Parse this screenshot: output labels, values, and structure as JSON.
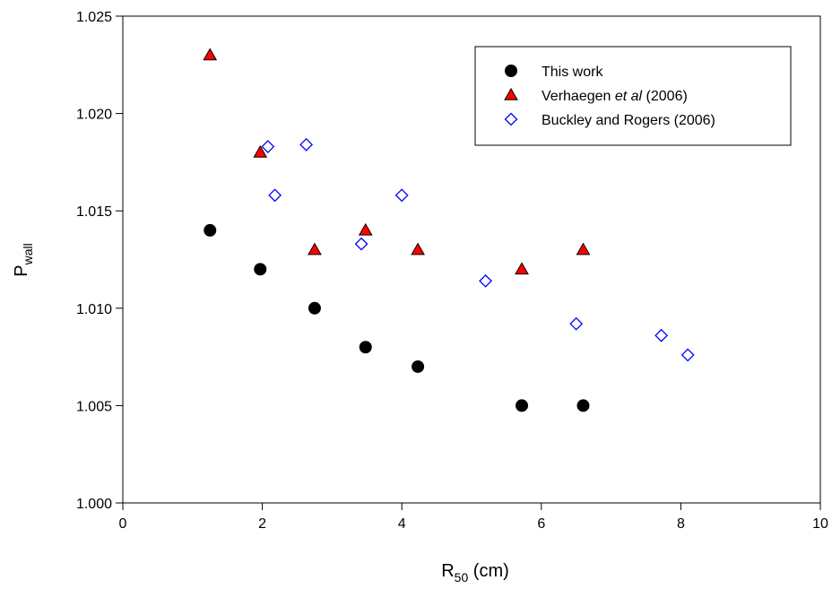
{
  "chart_data": {
    "type": "scatter",
    "title": "",
    "xlabel": {
      "main": "R",
      "sub": "50",
      "tail": " (cm)"
    },
    "ylabel": {
      "main": "P",
      "sub": "wall"
    },
    "xlim": [
      0,
      10
    ],
    "ylim": [
      1.0,
      1.025
    ],
    "xticks": [
      "0",
      "2",
      "4",
      "6",
      "8",
      "10"
    ],
    "yticks": [
      "1.000",
      "1.005",
      "1.010",
      "1.015",
      "1.020",
      "1.025"
    ],
    "grid": false,
    "legend_position": "top-right",
    "series": [
      {
        "name": "This work",
        "marker": "circle",
        "color": "#000000",
        "points": [
          [
            1.25,
            1.014
          ],
          [
            1.97,
            1.012
          ],
          [
            2.75,
            1.01
          ],
          [
            3.48,
            1.008
          ],
          [
            4.23,
            1.007
          ],
          [
            5.72,
            1.005
          ],
          [
            6.6,
            1.005
          ]
        ]
      },
      {
        "name": "Verhaegen et al (2006)",
        "name_parts": [
          "Verhaegen ",
          "et al",
          " (2006)"
        ],
        "marker": "triangle",
        "color": "#ff0000",
        "points": [
          [
            1.25,
            1.023
          ],
          [
            1.97,
            1.018
          ],
          [
            2.75,
            1.013
          ],
          [
            3.48,
            1.014
          ],
          [
            4.23,
            1.013
          ],
          [
            5.72,
            1.012
          ],
          [
            6.6,
            1.013
          ]
        ]
      },
      {
        "name": "Buckley and Rogers (2006)",
        "marker": "diamond",
        "color": "#0000ff",
        "points": [
          [
            2.08,
            1.0183
          ],
          [
            2.18,
            1.0158
          ],
          [
            2.63,
            1.0184
          ],
          [
            3.42,
            1.0133
          ],
          [
            4.0,
            1.0158
          ],
          [
            5.2,
            1.0114
          ],
          [
            6.5,
            1.0092
          ],
          [
            7.72,
            1.0086
          ],
          [
            8.1,
            1.0076
          ]
        ]
      }
    ]
  }
}
